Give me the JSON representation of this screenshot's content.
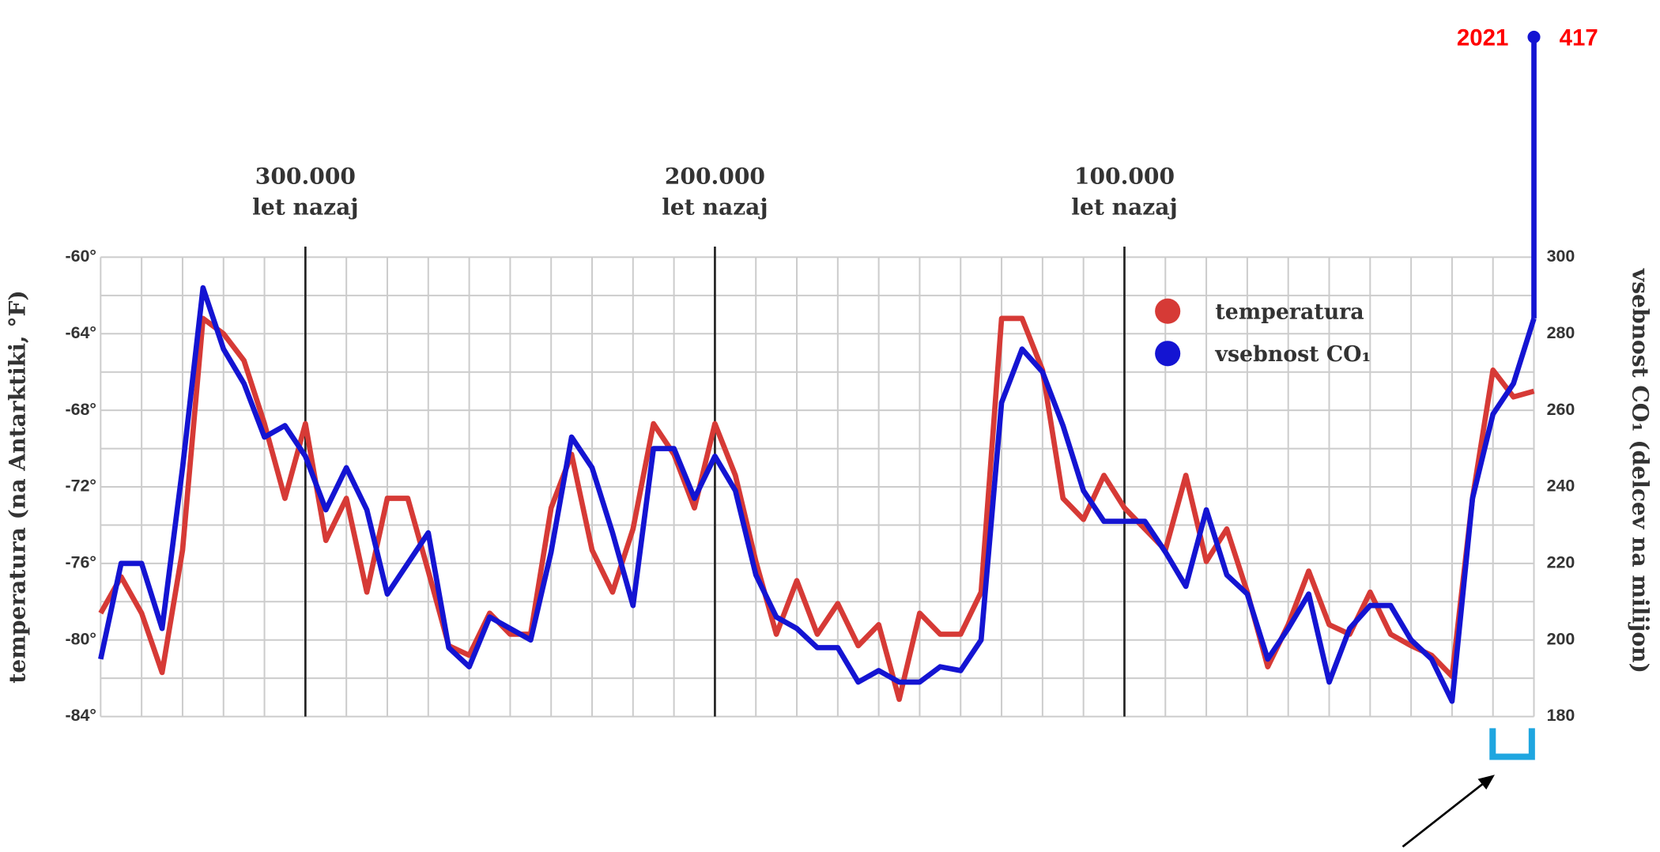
{
  "chart_data": {
    "type": "line",
    "ylabel": "temperatura (na Antarktiki, °F)",
    "y2label": "vsebnost CO₁ (delcev na milijon)",
    "xlim": [
      350000,
      0
    ],
    "xticks": [
      {
        "value": 300000,
        "label": "300.000"
      },
      {
        "value": 200000,
        "label": "200.000"
      },
      {
        "value": 100000,
        "label": "100.000"
      }
    ],
    "xtick_note": "let nazaj",
    "ylim": [
      -84,
      -60
    ],
    "yticks": [
      {
        "value": -84,
        "label": "-84°"
      },
      {
        "value": -80,
        "label": "-80°"
      },
      {
        "value": -76,
        "label": "-76°"
      },
      {
        "value": -72,
        "label": "-72°"
      },
      {
        "value": -68,
        "label": "-68°"
      },
      {
        "value": -64,
        "label": "-64°"
      },
      {
        "value": -60,
        "label": "-60°"
      }
    ],
    "y2lim": [
      180,
      300
    ],
    "y2ticks": [
      180,
      200,
      220,
      240,
      260,
      280,
      300
    ],
    "grid": true,
    "xgrid": [
      350000,
      340000,
      330000,
      320000,
      310000,
      300000,
      290000,
      280000,
      270000,
      260000,
      250000,
      240000,
      230000,
      220000,
      210000,
      200000,
      190000,
      180000,
      170000,
      160000,
      150000,
      140000,
      130000,
      120000,
      110000,
      100000,
      90000,
      80000,
      70000,
      60000,
      50000,
      40000,
      30000,
      20000,
      10000,
      0
    ],
    "ygrid": [
      -84,
      -82,
      -80,
      -78,
      -76,
      -74,
      -72,
      -70,
      -68,
      -66,
      -64,
      -62,
      -60
    ],
    "legend": "upper right",
    "x": [
      350000,
      345000,
      340000,
      335000,
      330000,
      325000,
      320000,
      315000,
      310000,
      305000,
      300000,
      295000,
      290000,
      285000,
      280000,
      275000,
      270000,
      265000,
      260000,
      255000,
      250000,
      245000,
      240000,
      235000,
      230000,
      225000,
      220000,
      215000,
      210000,
      205000,
      200000,
      195000,
      190000,
      185000,
      180000,
      175000,
      170000,
      165000,
      160000,
      155000,
      150000,
      145000,
      140000,
      135000,
      130000,
      125000,
      120000,
      115000,
      110000,
      105000,
      100000,
      95000,
      90000,
      85000,
      80000,
      75000,
      70000,
      65000,
      60000,
      55000,
      50000,
      45000,
      40000,
      35000,
      30000,
      25000,
      20000,
      15000,
      10000,
      5000,
      0
    ],
    "series": [
      {
        "name": "temperatura",
        "color": "#d63a36",
        "values": [
          -78.6,
          -76.7,
          -78.6,
          -81.7,
          -75.3,
          -63.2,
          -64,
          -65.4,
          -68.7,
          -72.6,
          -68.7,
          -74.8,
          -72.6,
          -77.5,
          -72.6,
          -72.6,
          -76.4,
          -80.3,
          -80.8,
          -78.6,
          -79.7,
          -79.7,
          -73.1,
          -70.3,
          -75.3,
          -77.5,
          -74.2,
          -68.7,
          -70.3,
          -73.1,
          -68.7,
          -71.4,
          -75.9,
          -79.7,
          -76.9,
          -79.7,
          -78.1,
          -80.3,
          -79.2,
          -83.1,
          -78.6,
          -79.7,
          -79.7,
          -77.5,
          -63.2,
          -63.2,
          -65.9,
          -72.6,
          -73.7,
          -71.4,
          -73.1,
          -74.2,
          -75.3,
          -71.4,
          -75.9,
          -74.2,
          -77.5,
          -81.4,
          -79.2,
          -76.4,
          -79.2,
          -79.7,
          -77.5,
          -79.7,
          -80.3,
          -80.8,
          -81.9,
          -72.6,
          -65.9,
          -67.3,
          -67
        ]
      },
      {
        "name": "vsebnost CO₁",
        "color": "#1414d2",
        "axis": "y2",
        "values": [
          195,
          220,
          220,
          203,
          245,
          292,
          276,
          267,
          253,
          256,
          248,
          234,
          245,
          234,
          212,
          220,
          228,
          198,
          193,
          206,
          203,
          200,
          223,
          253,
          245,
          228,
          209,
          250,
          250,
          237,
          248,
          239,
          217,
          206,
          203,
          198,
          198,
          189,
          192,
          189,
          189,
          193,
          192,
          200,
          262,
          276,
          270,
          256,
          239,
          231,
          231,
          231,
          223,
          214,
          234,
          217,
          212,
          195,
          203,
          212,
          189,
          203,
          209,
          209,
          200,
          195,
          184,
          237,
          259,
          267,
          284
        ]
      }
    ],
    "latest": {
      "year": "2021",
      "co2": 417
    }
  }
}
